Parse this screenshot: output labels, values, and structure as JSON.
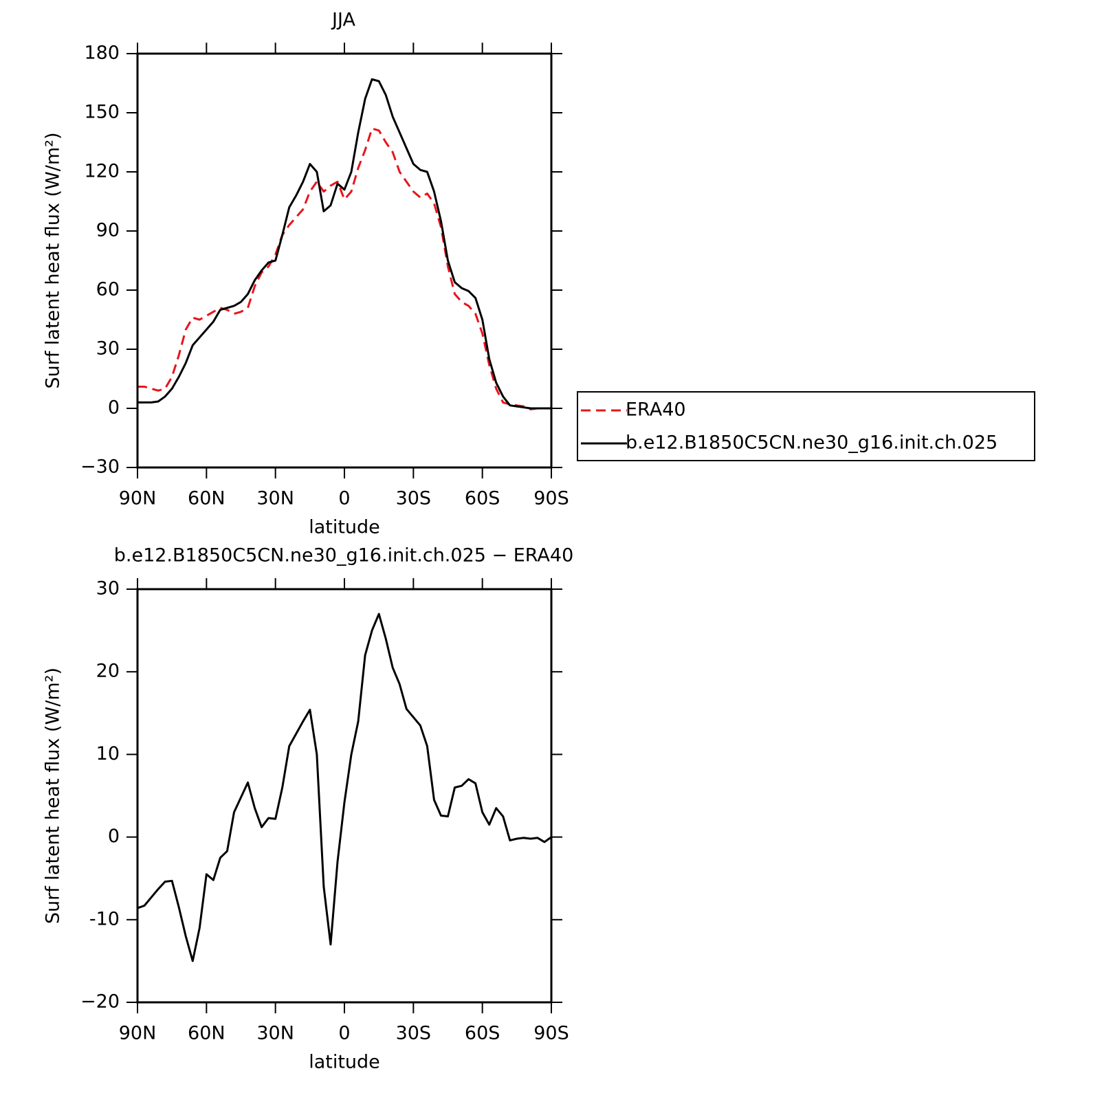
{
  "chart_data": [
    {
      "type": "line",
      "title": "JJA",
      "xlabel": "latitude",
      "ylabel": "Surf latent heat flux (W/m²)",
      "x": [
        90,
        87,
        84,
        81,
        78,
        75,
        72,
        69,
        66,
        63,
        60,
        57,
        54,
        51,
        48,
        45,
        42,
        39,
        36,
        33,
        30,
        27,
        24,
        21,
        18,
        15,
        12,
        9,
        6,
        3,
        0,
        -3,
        -6,
        -9,
        -12,
        -15,
        -18,
        -21,
        -24,
        -27,
        -30,
        -33,
        -36,
        -39,
        -42,
        -45,
        -48,
        -51,
        -54,
        -57,
        -60,
        -63,
        -66,
        -69,
        -72,
        -75,
        -78,
        -81,
        -84,
        -87,
        -90
      ],
      "series": [
        {
          "name": "ERA40",
          "color": "#e8141b",
          "dash": true,
          "values": [
            11,
            11,
            10,
            9,
            10,
            16,
            27,
            40,
            46,
            45,
            47,
            49,
            51,
            50,
            48,
            49,
            51,
            62,
            69,
            72,
            78,
            88,
            93,
            97,
            101,
            110,
            115,
            110,
            113,
            115,
            106,
            110,
            122,
            131,
            142,
            141,
            135,
            130,
            120,
            115,
            110,
            107,
            109,
            104,
            92,
            72,
            58,
            54,
            52,
            48,
            38,
            22,
            10,
            3,
            2,
            1.5,
            1,
            -0.5,
            0,
            0,
            0
          ]
        },
        {
          "name": "b.e12.B1850C5CN.ne30_g16.init.ch.025",
          "color": "#000000",
          "dash": false,
          "values": [
            3,
            3,
            3,
            3.5,
            6,
            10,
            16,
            23,
            32,
            36,
            40,
            44,
            50,
            51,
            52,
            54,
            58,
            65,
            70,
            74,
            75,
            88,
            102,
            108,
            115,
            124,
            120,
            100,
            103,
            114,
            111,
            120,
            140,
            157,
            167,
            166,
            159,
            148,
            140,
            132,
            124,
            121,
            120,
            110,
            95,
            75,
            64,
            61,
            59.5,
            56,
            45,
            25,
            13,
            6,
            1.5,
            1,
            0.5,
            0,
            0,
            0,
            0
          ]
        }
      ],
      "xlim": [
        90,
        -90
      ],
      "ylim": [
        -30,
        180
      ],
      "xticks": [
        {
          "value": 90,
          "label": "90N"
        },
        {
          "value": 60,
          "label": "60N"
        },
        {
          "value": 30,
          "label": "30N"
        },
        0,
        {
          "value": -30,
          "label": "30S"
        },
        {
          "value": -60,
          "label": "60S"
        },
        {
          "value": -90,
          "label": "90S"
        }
      ],
      "yticks": [
        {
          "value": -30,
          "label": "−30"
        },
        0,
        30,
        60,
        90,
        120,
        150,
        180
      ],
      "legend": "outside-right"
    },
    {
      "type": "line",
      "title": "b.e12.B1850C5CN.ne30_g16.init.ch.025 − ERA40",
      "xlabel": "latitude",
      "ylabel": "Surf latent heat flux (W/m²)",
      "x": [
        90,
        87,
        84,
        81,
        78,
        75,
        72,
        69,
        66,
        63,
        60,
        57,
        54,
        51,
        48,
        45,
        42,
        39,
        36,
        33,
        30,
        27,
        24,
        21,
        18,
        15,
        12,
        9,
        6,
        3,
        0,
        -3,
        -6,
        -9,
        -12,
        -15,
        -18,
        -21,
        -24,
        -27,
        -30,
        -33,
        -36,
        -39,
        -42,
        -45,
        -48,
        -51,
        -54,
        -57,
        -60,
        -63,
        -66,
        -69,
        -72,
        -75,
        -78,
        -81,
        -84,
        -87,
        -90
      ],
      "series": [
        {
          "color": "#000000",
          "dash": false,
          "values": [
            -8.6,
            -8.3,
            -7.3,
            -6.3,
            -5.4,
            -5.3,
            -8.5,
            -12,
            -15,
            -11,
            -4.5,
            -5.2,
            -2.5,
            -1.7,
            3,
            4.8,
            6.6,
            3.5,
            1.2,
            2.3,
            2.2,
            6,
            11,
            12.5,
            14,
            15.4,
            10,
            -6,
            -13,
            -3,
            4.2,
            10,
            14,
            22,
            25,
            27,
            24,
            20.5,
            18.5,
            15.5,
            14.5,
            13.5,
            11,
            4.5,
            2.6,
            2.5,
            6,
            6.2,
            7,
            6.5,
            3,
            1.5,
            3.5,
            2.5,
            -0.4,
            -0.2,
            -0.1,
            -0.2,
            -0.1,
            -0.6,
            0
          ]
        }
      ],
      "xlim": [
        90,
        -90
      ],
      "ylim": [
        -20,
        30
      ],
      "xticks": [
        {
          "value": 90,
          "label": "90N"
        },
        {
          "value": 60,
          "label": "60N"
        },
        {
          "value": 30,
          "label": "30N"
        },
        0,
        {
          "value": -30,
          "label": "30S"
        },
        {
          "value": -60,
          "label": "60S"
        },
        {
          "value": -90,
          "label": "90S"
        }
      ],
      "yticks": [
        {
          "value": -20,
          "label": "−20"
        },
        -10,
        0,
        10,
        20,
        30
      ]
    }
  ]
}
